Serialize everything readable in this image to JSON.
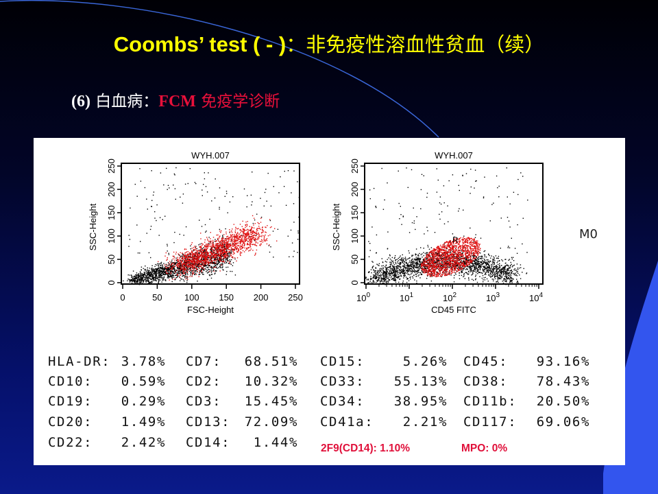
{
  "slide": {
    "title_en": "Coombs’ test ( - )",
    "title_cn": "：非免疫性溶血性贫血（续）",
    "subtitle_num": "(6)",
    "subtitle_cn": " 白血病：",
    "subtitle_red_en": "FCM",
    "subtitle_red_cn": " 免疫学诊断"
  },
  "plots": [
    {
      "title": "WYH.007",
      "xlabel": "FSC-Height",
      "ylabel": "SSC-Height",
      "xscale": "linear",
      "xticks": [
        "0",
        "50",
        "100",
        "150",
        "200",
        "250"
      ],
      "yticks": [
        "0",
        "50",
        "100",
        "150",
        "200",
        "250"
      ],
      "xlim": [
        0,
        255
      ],
      "ylim": [
        0,
        255
      ]
    },
    {
      "title": "WYH.007",
      "xlabel": "CD45 FITC",
      "ylabel": "SSC-Height",
      "xscale": "log",
      "xticks": [
        "0",
        "1",
        "2",
        "3",
        "4"
      ],
      "xtick_base": "10",
      "yticks": [
        "0",
        "50",
        "100",
        "150",
        "200",
        "250"
      ],
      "xlim": [
        1,
        10000
      ],
      "ylim": [
        0,
        255
      ],
      "gate_label": "R"
    }
  ],
  "diagnosis": "M0",
  "markers": [
    [
      {
        "name": "HLA-DR:",
        "value": "3.78%"
      },
      {
        "name": "CD10:",
        "value": "0.59%"
      },
      {
        "name": "CD19:",
        "value": "0.29%"
      },
      {
        "name": "CD20:",
        "value": "1.49%"
      },
      {
        "name": "CD22:",
        "value": "2.42%"
      }
    ],
    [
      {
        "name": "CD7:",
        "value": "68.51%"
      },
      {
        "name": "CD2:",
        "value": "10.32%"
      },
      {
        "name": "CD3:",
        "value": "15.45%"
      },
      {
        "name": "CD13:",
        "value": "72.09%"
      },
      {
        "name": "CD14:",
        "value": "1.44%"
      }
    ],
    [
      {
        "name": "CD15:",
        "value": "5.26%"
      },
      {
        "name": "CD33:",
        "value": "55.13%"
      },
      {
        "name": "CD34:",
        "value": "38.95%"
      },
      {
        "name": "CD41a:",
        "value": "2.21%"
      }
    ],
    [
      {
        "name": "CD45:",
        "value": "93.16%"
      },
      {
        "name": "CD38:",
        "value": "78.43%"
      },
      {
        "name": "CD11b:",
        "value": "20.50%"
      },
      {
        "name": "CD117:",
        "value": "69.06%"
      }
    ]
  ],
  "extra": [
    {
      "text": "2F9(CD14): 1.10%"
    },
    {
      "text": "MPO: 0%"
    }
  ],
  "colors": {
    "title": "#ffff00",
    "accent_red": "#e8103a",
    "dot_black": "#000000",
    "dot_red": "#e01010"
  }
}
